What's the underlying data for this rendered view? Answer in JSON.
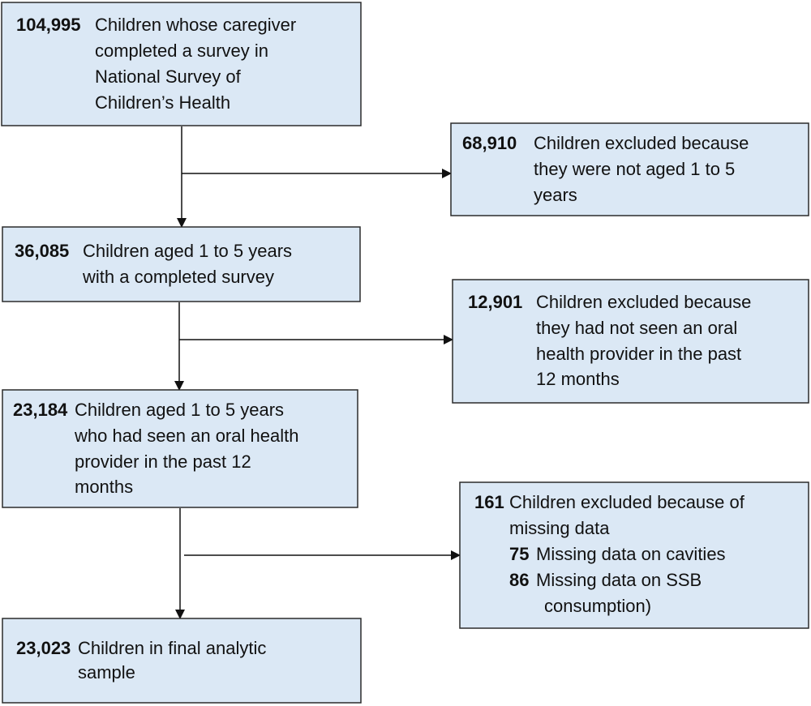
{
  "nodes": [
    {
      "count": "104,995",
      "lines": [
        "Children whose caregiver",
        "completed a survey in",
        "National Survey of",
        "Children’s Health"
      ]
    },
    {
      "count": "68,910",
      "lines": [
        "Children excluded because",
        "they were not aged 1 to 5",
        "years"
      ]
    },
    {
      "count": "36,085",
      "lines": [
        "Children aged 1 to 5 years",
        "with a completed survey"
      ]
    },
    {
      "count": "12,901",
      "lines": [
        "Children excluded because",
        "they had not seen an oral",
        "health provider in the past",
        "12 months"
      ]
    },
    {
      "count": "23,184",
      "lines": [
        "Children aged 1 to 5 years",
        "who had seen an oral health",
        "provider in the past 12",
        "months"
      ]
    },
    {
      "count": "161",
      "lines": [
        "Children excluded because of",
        "missing data"
      ],
      "items": [
        {
          "count": "75",
          "lines": [
            "Missing data on cavities"
          ]
        },
        {
          "count": "86",
          "lines": [
            "Missing data on SSB",
            "consumption)"
          ]
        }
      ]
    },
    {
      "count": "23,023",
      "lines": [
        "Children in final analytic",
        "sample"
      ]
    }
  ]
}
